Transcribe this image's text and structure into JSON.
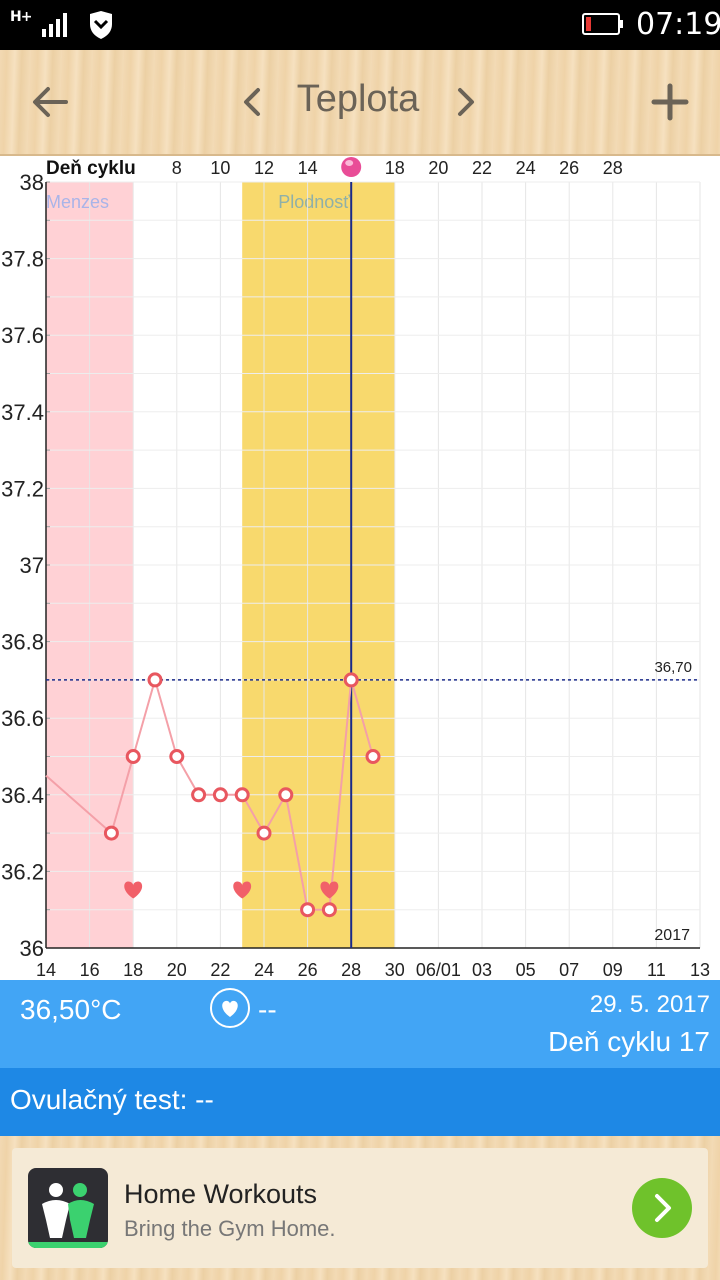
{
  "status_bar": {
    "network": "H+",
    "time": "07:19"
  },
  "header": {
    "title": "Teplota",
    "icons": [
      "back-arrow-icon",
      "chevron-left-icon",
      "chevron-right-icon",
      "plus-icon"
    ]
  },
  "chart_data": {
    "type": "line",
    "cycle_axis": {
      "label": "Deň cyklu",
      "ticks": [
        "8",
        "10",
        "12",
        "14",
        "18",
        "20",
        "22",
        "24",
        "26",
        "28"
      ]
    },
    "x_tick_labels": [
      "14",
      "16",
      "18",
      "20",
      "22",
      "24",
      "26",
      "28",
      "30",
      "06/01",
      "03",
      "05",
      "07",
      "09",
      "11",
      "13"
    ],
    "y_ticks": [
      "36",
      "36.2",
      "36.4",
      "36.6",
      "36.8",
      "37",
      "37.2",
      "37.4",
      "37.6",
      "37.8",
      "38"
    ],
    "ylim": [
      36,
      38
    ],
    "grid": true,
    "series": [
      {
        "day_of_may": [
          17,
          18,
          19,
          20,
          21,
          22,
          23,
          24,
          25,
          26,
          27,
          28,
          29
        ],
        "values": [
          36.3,
          36.5,
          36.7,
          36.5,
          36.4,
          36.4,
          36.4,
          36.3,
          36.4,
          36.1,
          36.1,
          36.7,
          36.5
        ]
      }
    ],
    "line_from_offscreen_value": 36.45,
    "reference_line": {
      "value": 36.7,
      "label": "36,70"
    },
    "bands": [
      {
        "label": "Menzes",
        "from_day": 14,
        "to_day": 18,
        "color": "#ffd1d5"
      },
      {
        "label": "Plodnosť",
        "from_day": 23,
        "to_day": 30,
        "color": "#f8d96d"
      }
    ],
    "heart_markers_days": [
      18,
      23,
      27
    ],
    "today_day": 28,
    "year_label": "2017",
    "colors": {
      "line": "#f4a0a8",
      "point": "#e8575f",
      "today_line": "#1a2a8a",
      "ref_line": "#1a2a8a"
    }
  },
  "info": {
    "temperature": "36,50°C",
    "heart_value": "--",
    "date": "29. 5. 2017",
    "cycle_day": "Deň cyklu 17"
  },
  "test": {
    "label": "Ovulačný test: --"
  },
  "ad": {
    "title": "Home Workouts",
    "subtitle": "Bring the Gym Home."
  }
}
